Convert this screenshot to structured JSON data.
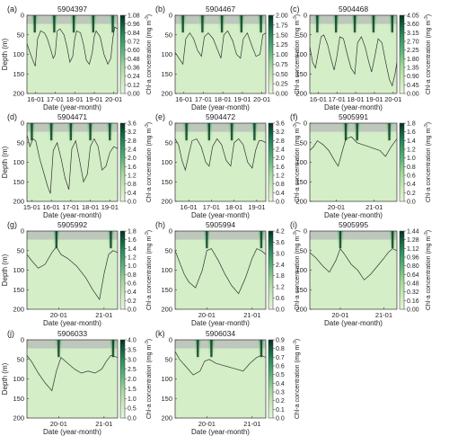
{
  "figure": {
    "y_label": "Depth  (m)",
    "x_label": "Date (year-month)",
    "cb_label": "Chl-a concentration  (mg m",
    "cb_unit_sup": "-3",
    "cb_close": ")"
  },
  "chart_data": [
    {
      "type": "heatmap",
      "panel": "(a)",
      "title": "5904397",
      "ylim": [
        0,
        200
      ],
      "y_ticks": [
        0,
        50,
        100,
        150,
        200
      ],
      "x_ticks": [
        "16-01",
        "17-01",
        "18-01",
        "19-01",
        "20-01"
      ],
      "x_range": [
        15.55,
        20.2
      ],
      "colorbar_ticks": [
        "1.08",
        "0.96",
        "0.84",
        "0.72",
        "0.60",
        "0.48",
        "0.36",
        "0.24",
        "0.12",
        "0.00"
      ],
      "colorbar_max": 1.08,
      "blooms": [
        15.95,
        16.95,
        17.95,
        18.95,
        19.95
      ],
      "line_x": [
        15.55,
        15.7,
        15.85,
        15.98,
        16.1,
        16.25,
        16.45,
        16.6,
        16.75,
        16.9,
        17.0,
        17.1,
        17.25,
        17.45,
        17.6,
        17.75,
        17.9,
        18.0,
        18.1,
        18.3,
        18.45,
        18.6,
        18.75,
        18.9,
        19.0,
        19.1,
        19.3,
        19.5,
        19.7,
        19.85,
        19.95,
        20.05,
        20.2
      ],
      "line_y": [
        72,
        95,
        115,
        130,
        60,
        40,
        45,
        60,
        85,
        110,
        100,
        40,
        35,
        50,
        80,
        120,
        105,
        60,
        40,
        45,
        75,
        115,
        125,
        95,
        55,
        40,
        55,
        100,
        125,
        110,
        60,
        30,
        35
      ]
    },
    {
      "type": "heatmap",
      "panel": "(b)",
      "title": "5904467",
      "ylim": [
        0,
        200
      ],
      "y_ticks": [
        0,
        50,
        100,
        150,
        200
      ],
      "x_ticks": [
        "16-01",
        "17-01",
        "18-01",
        "19-01",
        "20-01"
      ],
      "x_range": [
        15.55,
        20.2
      ],
      "colorbar_ticks": [
        "2.00",
        "1.75",
        "1.50",
        "1.25",
        "1.00",
        "0.75",
        "0.50",
        "0.25",
        "0.00"
      ],
      "colorbar_max": 2.0,
      "blooms": [
        15.95,
        16.95,
        17.95,
        18.95,
        19.95
      ],
      "line_x": [
        15.55,
        15.75,
        15.95,
        16.1,
        16.3,
        16.5,
        16.7,
        16.9,
        17.05,
        17.25,
        17.5,
        17.7,
        17.9,
        18.05,
        18.25,
        18.5,
        18.7,
        18.9,
        19.05,
        19.25,
        19.5,
        19.7,
        19.9,
        20.05,
        20.2
      ],
      "line_y": [
        95,
        110,
        125,
        60,
        45,
        60,
        90,
        105,
        55,
        45,
        60,
        85,
        110,
        50,
        40,
        65,
        100,
        110,
        60,
        45,
        80,
        105,
        100,
        50,
        45
      ]
    },
    {
      "type": "heatmap",
      "panel": "(c)",
      "title": "5904468",
      "ylim": [
        0,
        200
      ],
      "y_ticks": [
        0,
        50,
        100,
        150,
        200
      ],
      "x_ticks": [
        "16-01",
        "17-01",
        "18-01",
        "19-01",
        "20-01"
      ],
      "x_range": [
        15.55,
        20.2
      ],
      "colorbar_ticks": [
        "4.05",
        "3.60",
        "3.15",
        "2.70",
        "2.25",
        "1.80",
        "1.35",
        "0.90",
        "0.45",
        "0.00"
      ],
      "colorbar_max": 4.05,
      "blooms": [
        15.95,
        16.95,
        17.95,
        18.95,
        19.95
      ],
      "line_x": [
        15.55,
        15.7,
        15.85,
        16.0,
        16.15,
        16.3,
        16.5,
        16.7,
        16.85,
        17.0,
        17.15,
        17.35,
        17.55,
        17.75,
        17.95,
        18.1,
        18.3,
        18.5,
        18.7,
        18.85,
        19.0,
        19.2,
        19.4,
        19.6,
        19.8,
        19.95,
        20.1,
        20.2
      ],
      "line_y": [
        80,
        120,
        135,
        95,
        55,
        50,
        75,
        115,
        140,
        105,
        55,
        60,
        100,
        135,
        150,
        70,
        55,
        80,
        120,
        145,
        110,
        60,
        70,
        120,
        165,
        180,
        150,
        120
      ]
    },
    {
      "type": "heatmap",
      "panel": "(d)",
      "title": "5904471",
      "ylim": [
        0,
        200
      ],
      "y_ticks": [
        0,
        50,
        100,
        150,
        200
      ],
      "x_ticks": [
        "15-01",
        "16-01",
        "17-01",
        "18-01",
        "19-01"
      ],
      "x_range": [
        14.75,
        19.4
      ],
      "colorbar_ticks": [
        "3.6",
        "3.2",
        "2.8",
        "2.4",
        "2.0",
        "1.6",
        "1.2",
        "0.8",
        "0.4",
        "0.0"
      ],
      "colorbar_max": 3.6,
      "blooms": [
        15.0,
        16.0,
        17.0,
        18.0,
        19.0
      ],
      "line_x": [
        14.75,
        14.9,
        15.05,
        15.2,
        15.4,
        15.6,
        15.8,
        15.95,
        16.1,
        16.3,
        16.5,
        16.7,
        16.9,
        17.05,
        17.25,
        17.45,
        17.65,
        17.85,
        18.0,
        18.2,
        18.4,
        18.6,
        18.8,
        19.0,
        19.2,
        19.4
      ],
      "line_y": [
        30,
        60,
        40,
        45,
        90,
        125,
        160,
        180,
        70,
        50,
        90,
        140,
        170,
        65,
        45,
        95,
        150,
        130,
        60,
        40,
        60,
        120,
        110,
        75,
        60,
        65
      ]
    },
    {
      "type": "heatmap",
      "panel": "(e)",
      "title": "5904472",
      "ylim": [
        0,
        200
      ],
      "y_ticks": [
        0,
        50,
        100,
        150,
        200
      ],
      "x_ticks": [
        "16-01",
        "17-01",
        "18-01",
        "19-01"
      ],
      "x_range": [
        15.4,
        19.4
      ],
      "colorbar_ticks": [
        "3.6",
        "3.2",
        "2.8",
        "2.4",
        "2.0",
        "1.6",
        "1.2",
        "0.8",
        "0.4",
        "0.0"
      ],
      "colorbar_max": 3.6,
      "blooms": [
        15.9,
        16.9,
        17.9,
        18.9
      ],
      "line_x": [
        15.4,
        15.55,
        15.7,
        15.85,
        16.0,
        16.15,
        16.35,
        16.55,
        16.75,
        16.9,
        17.05,
        17.25,
        17.45,
        17.65,
        17.85,
        18.0,
        18.2,
        18.4,
        18.6,
        18.8,
        18.95,
        19.1,
        19.25,
        19.4
      ],
      "line_y": [
        40,
        55,
        95,
        120,
        80,
        45,
        40,
        60,
        100,
        110,
        60,
        40,
        55,
        95,
        110,
        50,
        40,
        55,
        100,
        115,
        70,
        45,
        45,
        50
      ]
    },
    {
      "type": "heatmap",
      "panel": "(f)",
      "title": "5905991",
      "ylim": [
        0,
        200
      ],
      "y_ticks": [
        0,
        50,
        100,
        150,
        200
      ],
      "x_ticks": [
        "20-01",
        "21-01"
      ],
      "x_range": [
        19.3,
        21.6
      ],
      "colorbar_ticks": [
        "1.8",
        "1.6",
        "1.4",
        "1.2",
        "1.0",
        "0.8",
        "0.6",
        "0.4",
        "0.2",
        "0.0"
      ],
      "colorbar_max": 1.8,
      "blooms": [
        20.25,
        20.55,
        21.4
      ],
      "line_x": [
        19.3,
        19.4,
        19.5,
        19.65,
        19.8,
        19.95,
        20.05,
        20.15,
        20.25,
        20.4,
        20.55,
        20.7,
        20.85,
        21.0,
        21.15,
        21.3,
        21.45,
        21.6
      ],
      "line_y": [
        70,
        60,
        45,
        55,
        70,
        95,
        110,
        75,
        40,
        35,
        50,
        55,
        60,
        65,
        70,
        85,
        60,
        40
      ]
    },
    {
      "type": "heatmap",
      "panel": "(g)",
      "title": "5905992",
      "ylim": [
        0,
        200
      ],
      "y_ticks": [
        0,
        50,
        100,
        150,
        200
      ],
      "x_ticks": [
        "20-01",
        "21-01"
      ],
      "x_range": [
        19.3,
        21.3
      ],
      "colorbar_ticks": [
        "1.8",
        "1.6",
        "1.4",
        "1.2",
        "1.0",
        "0.8",
        "0.6",
        "0.4",
        "0.2",
        "0.0"
      ],
      "colorbar_max": 1.8,
      "blooms": [
        19.95,
        21.15
      ],
      "line_x": [
        19.3,
        19.4,
        19.55,
        19.7,
        19.85,
        19.95,
        20.05,
        20.2,
        20.4,
        20.6,
        20.75,
        20.9,
        21.0,
        21.1,
        21.2,
        21.3
      ],
      "line_y": [
        60,
        75,
        95,
        85,
        55,
        40,
        60,
        70,
        90,
        120,
        150,
        175,
        110,
        60,
        50,
        55
      ]
    },
    {
      "type": "heatmap",
      "panel": "(h)",
      "title": "5905994",
      "ylim": [
        0,
        200
      ],
      "y_ticks": [
        0,
        50,
        100,
        150,
        200
      ],
      "x_ticks": [
        "20-01",
        "21-01"
      ],
      "x_range": [
        19.3,
        21.3
      ],
      "colorbar_ticks": [
        "4.2",
        "3.6",
        "3.0",
        "2.4",
        "1.8",
        "1.2",
        "0.6",
        "0.0"
      ],
      "colorbar_max": 4.2,
      "blooms": [
        20.0,
        21.2
      ],
      "line_x": [
        19.3,
        19.4,
        19.5,
        19.6,
        19.75,
        19.9,
        20.0,
        20.1,
        20.25,
        20.4,
        20.55,
        20.7,
        20.85,
        21.0,
        21.1,
        21.2,
        21.3
      ],
      "line_y": [
        50,
        80,
        110,
        130,
        145,
        100,
        50,
        45,
        75,
        110,
        140,
        160,
        120,
        70,
        45,
        50,
        60
      ]
    },
    {
      "type": "heatmap",
      "panel": "(i)",
      "title": "5905995",
      "ylim": [
        0,
        200
      ],
      "y_ticks": [
        0,
        50,
        100,
        150,
        200
      ],
      "x_ticks": [
        "20-01",
        "21-01"
      ],
      "x_range": [
        19.3,
        21.3
      ],
      "colorbar_ticks": [
        "1.44",
        "1.28",
        "1.12",
        "0.96",
        "0.80",
        "0.64",
        "0.48",
        "0.32",
        "0.16",
        "0.00"
      ],
      "colorbar_max": 1.44,
      "blooms": [
        20.0,
        21.2
      ],
      "line_x": [
        19.3,
        19.45,
        19.6,
        19.75,
        19.9,
        20.0,
        20.1,
        20.25,
        20.4,
        20.55,
        20.7,
        20.85,
        21.0,
        21.1,
        21.2,
        21.3
      ],
      "line_y": [
        55,
        70,
        90,
        105,
        75,
        45,
        60,
        85,
        100,
        125,
        110,
        90,
        70,
        55,
        45,
        50
      ]
    },
    {
      "type": "heatmap",
      "panel": "(j)",
      "title": "5906033",
      "ylim": [
        0,
        200
      ],
      "y_ticks": [
        0,
        50,
        100,
        150,
        200
      ],
      "x_ticks": [
        "20-01",
        "21-01"
      ],
      "x_range": [
        19.3,
        21.3
      ],
      "colorbar_ticks": [
        "4.0",
        "3.5",
        "3.0",
        "2.5",
        "2.0",
        "1.5",
        "1.0",
        "0.5",
        "0.0"
      ],
      "colorbar_max": 4.0,
      "blooms": [
        20.0,
        21.2
      ],
      "line_x": [
        19.3,
        19.4,
        19.55,
        19.7,
        19.85,
        19.95,
        20.05,
        20.2,
        20.35,
        20.5,
        20.65,
        20.8,
        20.95,
        21.05,
        21.15,
        21.3
      ],
      "line_y": [
        40,
        55,
        85,
        110,
        130,
        80,
        45,
        60,
        75,
        85,
        80,
        85,
        75,
        55,
        40,
        45
      ]
    },
    {
      "type": "heatmap",
      "panel": "(k)",
      "title": "5906034",
      "ylim": [
        0,
        200
      ],
      "y_ticks": [
        0,
        50,
        100,
        150,
        200
      ],
      "x_ticks": [
        "20-01",
        "21-01"
      ],
      "x_range": [
        19.3,
        21.3
      ],
      "colorbar_ticks": [
        "0.9",
        "0.8",
        "0.7",
        "0.6",
        "0.5",
        "0.4",
        "0.3",
        "0.2",
        "0.1",
        "0.0"
      ],
      "colorbar_max": 0.9,
      "blooms": [
        19.8,
        20.1,
        21.2
      ],
      "line_x": [
        19.3,
        19.4,
        19.55,
        19.7,
        19.85,
        19.95,
        20.05,
        20.2,
        20.35,
        20.5,
        20.65,
        20.8,
        20.95,
        21.1,
        21.2,
        21.3
      ],
      "line_y": [
        30,
        50,
        70,
        90,
        80,
        55,
        50,
        60,
        65,
        70,
        75,
        80,
        60,
        45,
        40,
        45
      ]
    }
  ]
}
